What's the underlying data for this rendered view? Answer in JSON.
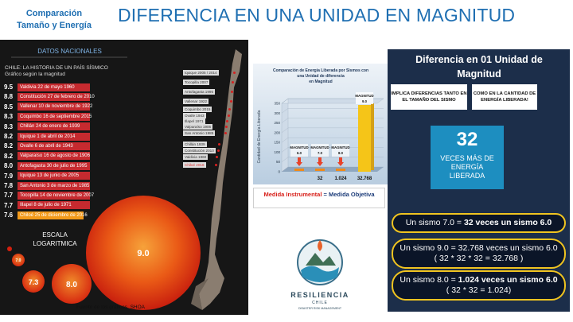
{
  "header": {
    "side_title": [
      "Comparación",
      "Tamaño y Energía"
    ],
    "title": "DIFERENCIA EN UNA UNIDAD EN MAGNITUD"
  },
  "left_panel": {
    "heading": "DATOS NACIONALES",
    "subtitle": "CHILE: LA HISTORIA DE UN PAÍS SÍSMICO",
    "subtitle2": "Gráfico según la magnitud",
    "quakes": [
      {
        "magnitude": "9.5",
        "label": "Valdivia 22 de mayo 1960"
      },
      {
        "magnitude": "8.8",
        "label": "Constitución 27 de febrero de 2010"
      },
      {
        "magnitude": "8.5",
        "label": "Vallenar 10 de noviembre de 1922"
      },
      {
        "magnitude": "8.3",
        "label": "Coquimbo 16 de septiembre 2015"
      },
      {
        "magnitude": "8.3",
        "label": "Chillán 24 de enero de 1939"
      },
      {
        "magnitude": "8.2",
        "label": "Iquique 1 de abril de 2014"
      },
      {
        "magnitude": "8.2",
        "label": "Ovalle 6 de abril de 1943"
      },
      {
        "magnitude": "8.2",
        "label": "Valparaíso 16 de agosto de 1906"
      },
      {
        "magnitude": "8.0",
        "label": "Antofagasta 30 de julio de 1995"
      },
      {
        "magnitude": "7.9",
        "label": "Iquique 13 de junio de 2005"
      },
      {
        "magnitude": "7.8",
        "label": "San Antonio 3 de marzo de 1985"
      },
      {
        "magnitude": "7.7",
        "label": "Tocopilla 14 de noviembre de 2007"
      },
      {
        "magnitude": "7.7",
        "label": "Illapel 8 de julio de 1971"
      },
      {
        "magnitude": "7.6",
        "label": "Chiloé 25 de diciembre de 2016"
      }
    ],
    "map_labels": [
      "Iquique 2005 / 2014",
      "Tocopilla 2007",
      "Antofagasta 1995",
      "Vallenar 1922",
      "Coquimbo 2015",
      "Ovalle 1943",
      "Illapel 1971",
      "Valparaíso 1906",
      "San Antonio 1985",
      "Chillán 1939",
      "Constitución 2010",
      "Valdivia 1960",
      "Chiloé 2016"
    ],
    "scale_label": [
      "ESCALA",
      "LOGARITMICA"
    ],
    "circles": [
      "9.0",
      "8.0",
      "7.3",
      "7.0"
    ],
    "source": "Fuente de los gráficos. SHOA"
  },
  "energy_chart": {
    "title": [
      "Comparación de Energía Liberada por Sismos con",
      "una Unidad de diferencia",
      "en Magnitud"
    ],
    "y_label": "Cantidad de Energía Liberada",
    "yticks": [
      "350",
      "300",
      "250",
      "200",
      "150",
      "100",
      "50",
      "0"
    ],
    "bars": [
      {
        "label": "MAGNITUD",
        "magnitude": "6.0"
      },
      {
        "label": "MAGNITUD",
        "magnitude": "7.0"
      },
      {
        "label": "MAGNITUD",
        "magnitude": "8.0"
      },
      {
        "label": "MAGNITUD",
        "magnitude": "9.0"
      }
    ],
    "value_labels": [
      "32",
      "1.024",
      "32.768"
    ]
  },
  "note": {
    "highlight": "Medida Instrumental",
    "rest": " = Medida Objetiva"
  },
  "logo": {
    "name": "RESILIENCIA",
    "country": "CHILE",
    "tagline": "DISASTER RISK MANAGEMENT"
  },
  "right_panel": {
    "title": "Diferencia en 01 Unidad de Magnitud",
    "box1": "IMPLICA DIFERENCIAS TANTO EN EL TAMAÑO DEL SISMO",
    "box2": "COMO EN LA CANTIDAD DE ENERGÍA LIBERADA!",
    "big_number": "32",
    "big_caption": "VECES MÁS DE ENERGÍA LIBERADA",
    "statements": [
      {
        "text": "Un sismo 7.0 = ",
        "bold": "32 veces un sismo 6.0",
        "formula": null
      },
      {
        "text": "Un sismo 9.0 = 32.768 veces un sismo 6.0",
        "bold": null,
        "formula": "( 32 * 32 * 32 = 32.768 )"
      },
      {
        "text": "Un sismo 8.0 = ",
        "bold": "1.024 veces un sismo 6.0",
        "formula": "( 32 * 32 = 1.024)"
      }
    ]
  }
}
